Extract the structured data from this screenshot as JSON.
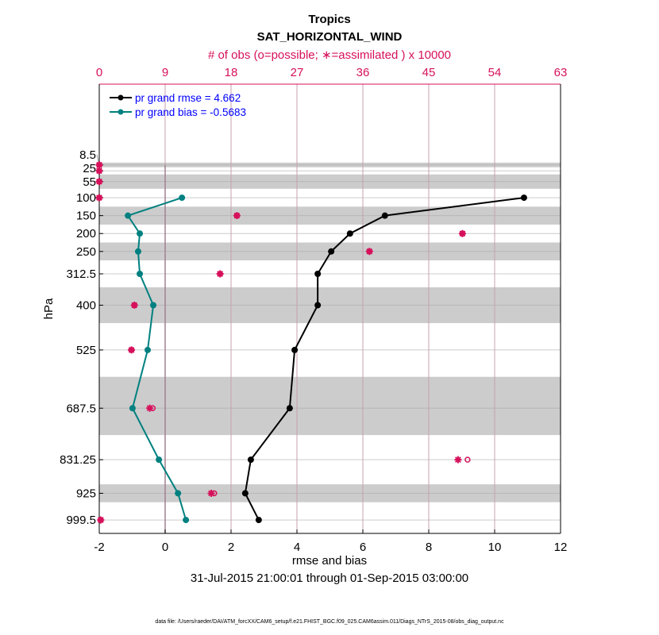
{
  "chart_data": {
    "type": "line",
    "title": "Tropics",
    "subtitle": "SAT_HORIZONTAL_WIND",
    "top_axis_label": "# of obs (o=possible; ∗=assimilated ) x 10000",
    "xlabel": "rmse and bias",
    "ylabel": "hPa",
    "time_range": "31-Jul-2015 21:00:01 through 01-Sep-2015 03:00:00",
    "footer": "data file: /Users/raeder/DAI/ATM_forcXX/CAM6_setup/f.e21.FHIST_BGC.f09_025.CAM6assim.011/Diags_NTrS_2015-08/obs_diag_output.nc",
    "xlim": [
      -2,
      12
    ],
    "xticks": [
      -2,
      0,
      2,
      4,
      6,
      8,
      10,
      12
    ],
    "top_xlim": [
      0,
      63
    ],
    "top_xticks": [
      0,
      9,
      18,
      27,
      36,
      45,
      54,
      63
    ],
    "ylim": [
      -217,
      1037
    ],
    "y_reversed": true,
    "levels": [
      8.5,
      25,
      55,
      100,
      150,
      200,
      250,
      312.5,
      400,
      525,
      687.5,
      831.25,
      925,
      999.5
    ],
    "level_tick_labels": [
      "8.5",
      "25",
      "55",
      "100",
      "150",
      "200",
      "250",
      "312.5",
      "400",
      "525",
      "687.5",
      "831.25",
      "925",
      "999.5"
    ],
    "layer_bands": [
      [
        2,
        15
      ],
      [
        35,
        75
      ],
      [
        125,
        175
      ],
      [
        225,
        275
      ],
      [
        350,
        450
      ],
      [
        600,
        762.5
      ],
      [
        900,
        950
      ]
    ],
    "legend_placement": "top-left",
    "series": [
      {
        "name": "pr grand rmse = 4.662",
        "color": "#000000",
        "levels": [
          100,
          150,
          200,
          250,
          312.5,
          400,
          525,
          687.5,
          831.25,
          925,
          999.5
        ],
        "values": [
          10.89,
          6.67,
          5.61,
          5.04,
          4.63,
          4.63,
          3.93,
          3.78,
          2.6,
          2.43,
          2.84
        ]
      },
      {
        "name": "pr grand bias = -0.5683",
        "color": "#008080",
        "levels": [
          100,
          150,
          200,
          250,
          312.5,
          400,
          525,
          687.5,
          831.25,
          925,
          999.5
        ],
        "values": [
          0.51,
          -1.13,
          -0.77,
          -0.82,
          -0.77,
          -0.36,
          -0.53,
          -0.99,
          -0.19,
          0.39,
          0.63
        ]
      }
    ],
    "obs_counts": {
      "color": "#d6105a",
      "levels": [
        8.5,
        25,
        55,
        100,
        150,
        200,
        250,
        312.5,
        400,
        525,
        687.5,
        831.25,
        925,
        999.5
      ],
      "possible": [
        0,
        0,
        0,
        0,
        18.8,
        49.6,
        36.9,
        16.5,
        4.8,
        4.4,
        7.3,
        50.3,
        15.7,
        0.2
      ],
      "assimilated": [
        0,
        0,
        0,
        0,
        18.8,
        49.6,
        36.9,
        16.5,
        4.8,
        4.4,
        6.9,
        49.0,
        15.3,
        0.2
      ]
    },
    "colors": {
      "band": "#cccccc",
      "grid": "#c8a0b0",
      "legend_text": "#0000ff",
      "zero_line": "#a08090"
    }
  }
}
